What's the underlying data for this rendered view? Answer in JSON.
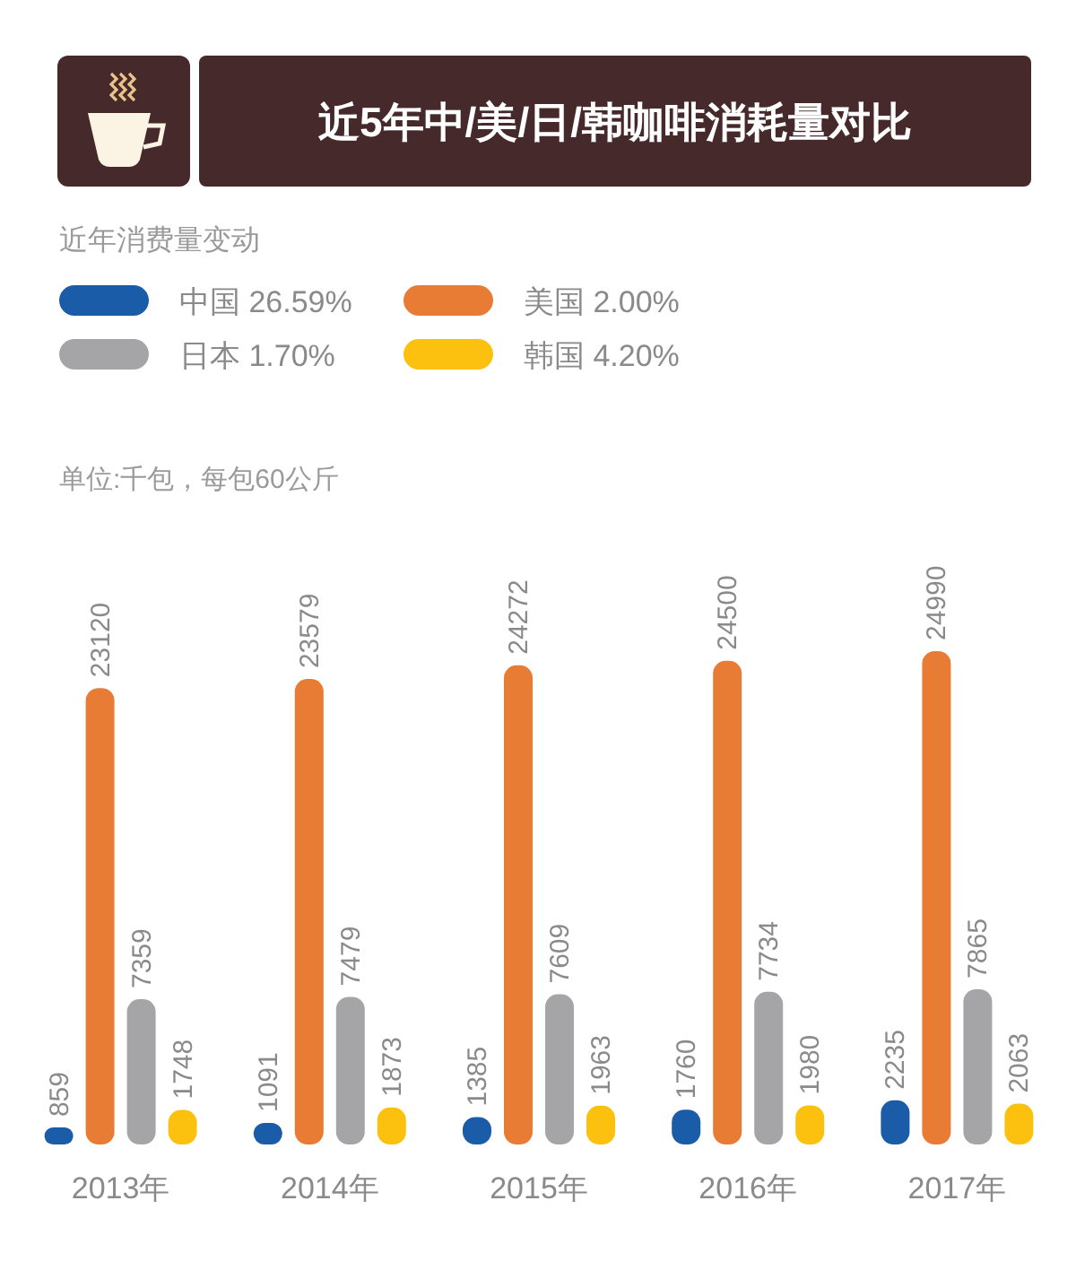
{
  "chart_data": {
    "type": "bar",
    "title": "近5年中/美/日/韩咖啡消耗量对比",
    "annotations": [
      "单位:千包，每包60公斤"
    ],
    "legend_title": "近年消费量变动",
    "categories": [
      "2013年",
      "2014年",
      "2015年",
      "2016年",
      "2017年"
    ],
    "series": [
      {
        "name": "中国 26.59%",
        "color": "#1a5ca8",
        "values": [
          859,
          1091,
          1385,
          1760,
          2235
        ]
      },
      {
        "name": "美国 2.00%",
        "color": "#e87c35",
        "values": [
          23120,
          23579,
          24272,
          24500,
          24990
        ]
      },
      {
        "name": "日本 1.70%",
        "color": "#a5a5a7",
        "values": [
          7359,
          7479,
          7609,
          7734,
          7865
        ]
      },
      {
        "name": "韩国 4.20%",
        "color": "#fcc10f",
        "values": [
          1748,
          1873,
          1963,
          1980,
          2063
        ]
      }
    ],
    "data_labels": true,
    "legend": "top left"
  }
}
